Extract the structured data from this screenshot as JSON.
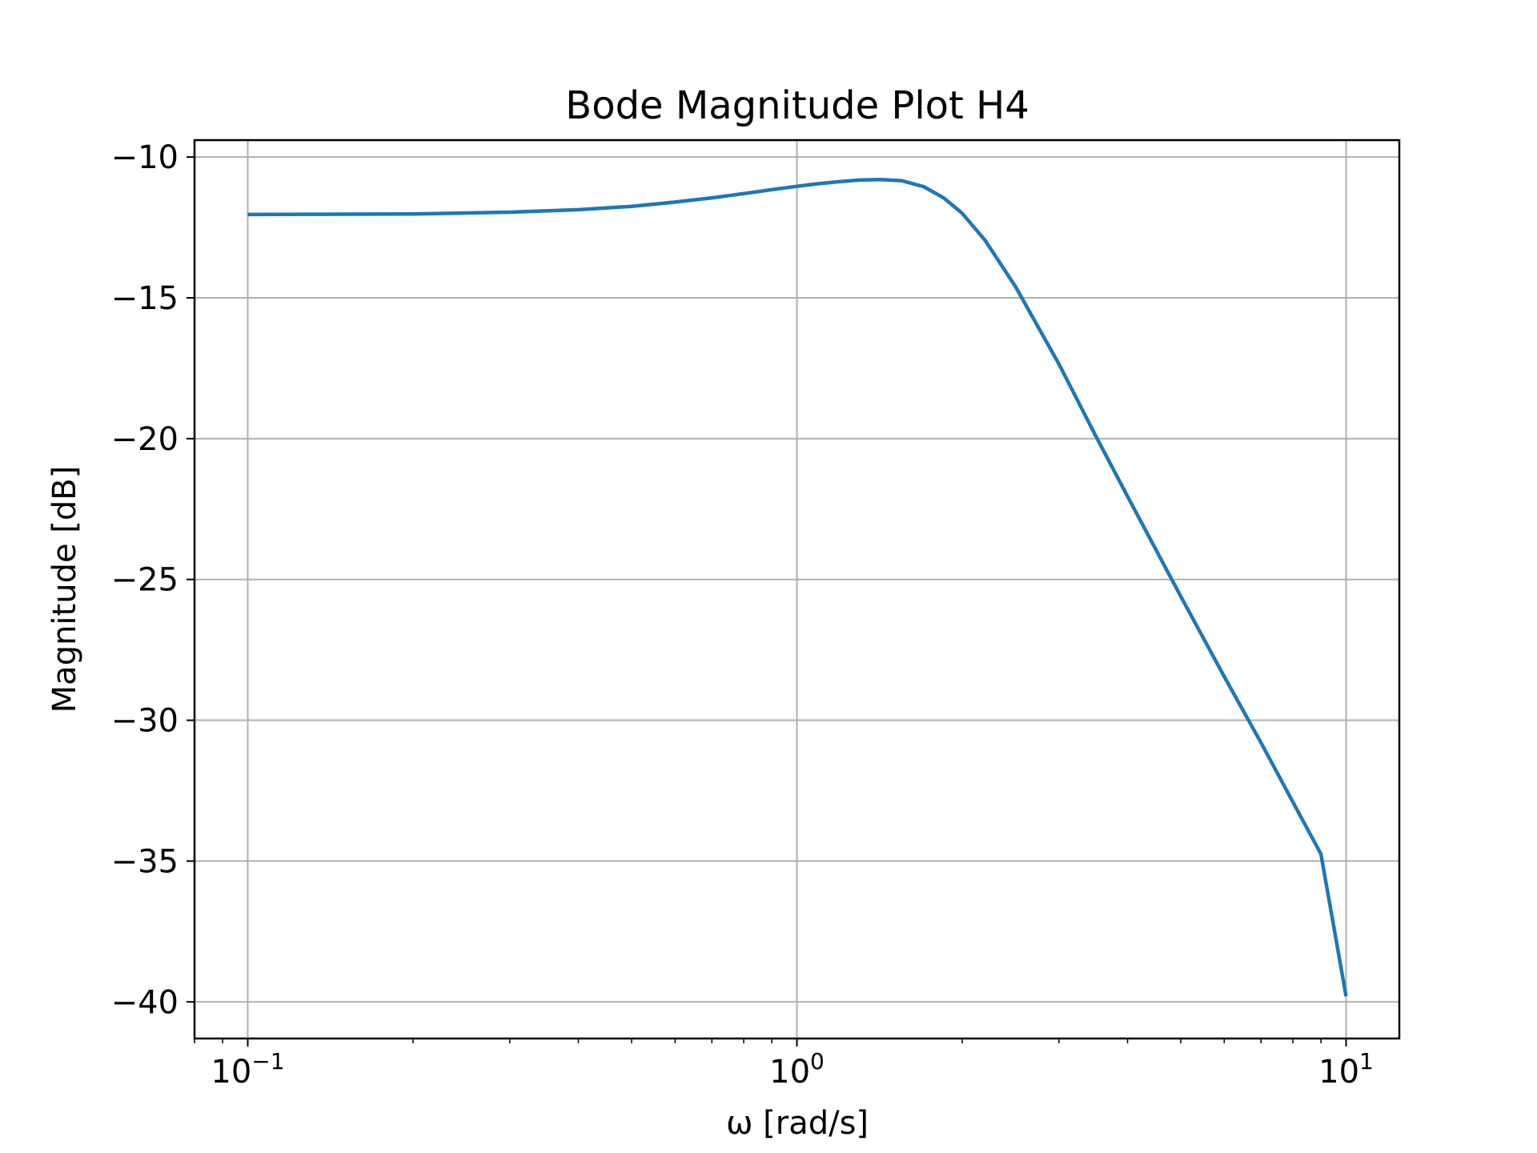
{
  "chart_data": {
    "type": "line",
    "title": "Bode Magnitude Plot H4",
    "xlabel": "ω [rad/s]",
    "ylabel": "Magnitude [dB]",
    "xscale": "log",
    "xlim": [
      0.08,
      12.5
    ],
    "ylim": [
      -41.3,
      -9.4
    ],
    "grid": true,
    "x_ticks": [
      {
        "value": 0.1,
        "base": "10",
        "exp": "−1"
      },
      {
        "value": 1,
        "base": "10",
        "exp": "0"
      },
      {
        "value": 10,
        "base": "10",
        "exp": "1"
      }
    ],
    "y_ticks": [
      {
        "value": -10,
        "label": "−10"
      },
      {
        "value": -15,
        "label": "−15"
      },
      {
        "value": -20,
        "label": "−20"
      },
      {
        "value": -25,
        "label": "−25"
      },
      {
        "value": -30,
        "label": "−30"
      },
      {
        "value": -35,
        "label": "−35"
      },
      {
        "value": -40,
        "label": "−40"
      }
    ],
    "series": [
      {
        "color": "#1f77b4",
        "x": [
          0.1,
          0.15,
          0.2,
          0.3,
          0.4,
          0.5,
          0.6,
          0.7,
          0.8,
          0.9,
          1.0,
          1.1,
          1.2,
          1.3,
          1.42,
          1.55,
          1.7,
          1.85,
          2.0,
          2.2,
          2.5,
          3.0,
          3.5,
          4.0,
          5.0,
          6.0,
          7.0,
          8.0,
          9.0,
          10.0
        ],
        "y": [
          -12.04,
          -12.03,
          -12.02,
          -11.96,
          -11.87,
          -11.75,
          -11.6,
          -11.45,
          -11.3,
          -11.16,
          -11.04,
          -10.94,
          -10.87,
          -10.82,
          -10.8,
          -10.84,
          -11.05,
          -11.45,
          -12.0,
          -12.95,
          -14.6,
          -17.35,
          -19.9,
          -22.05,
          -25.6,
          -28.45,
          -30.8,
          -32.9,
          -34.75,
          -39.8
        ]
      }
    ]
  }
}
